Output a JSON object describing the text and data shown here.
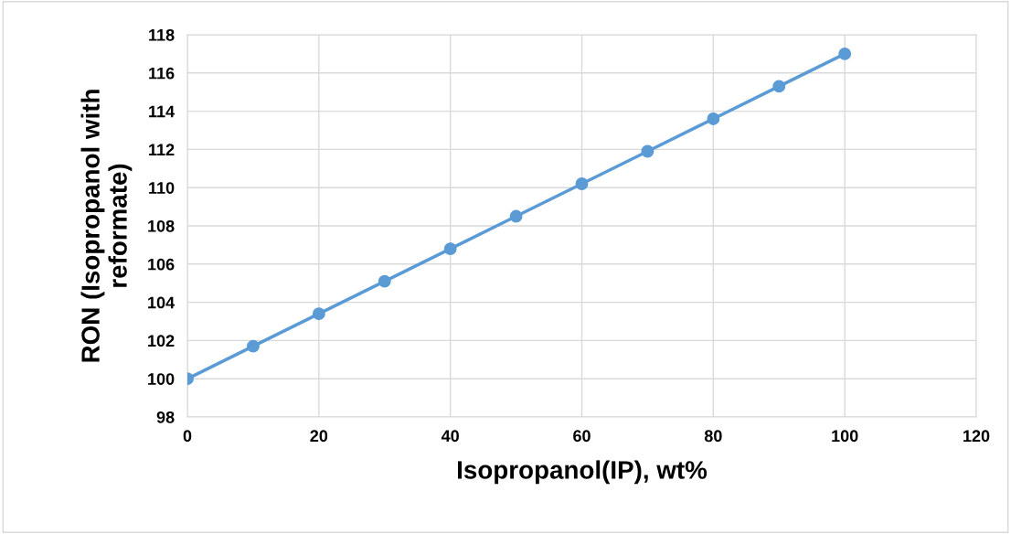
{
  "chart_data": {
    "type": "line",
    "xlabel": "Isopropanol(IP), wt%",
    "ylabel": "RON (Isopropanol with\nreformate)",
    "x": [
      0,
      10,
      20,
      30,
      40,
      50,
      60,
      70,
      80,
      90,
      100
    ],
    "series": [
      {
        "color": "#5b9bd5",
        "values": [
          100,
          101.7,
          103.4,
          105.1,
          106.8,
          108.5,
          110.2,
          111.9,
          113.6,
          115.3,
          117
        ]
      }
    ],
    "xlim": [
      0,
      120
    ],
    "xticks": [
      0,
      20,
      40,
      60,
      80,
      100,
      120
    ],
    "ylim": [
      98,
      118
    ],
    "yticks": [
      98,
      100,
      102,
      104,
      106,
      108,
      110,
      112,
      114,
      116,
      118
    ],
    "grid": true,
    "marker": "circle",
    "line_style": "solid"
  }
}
